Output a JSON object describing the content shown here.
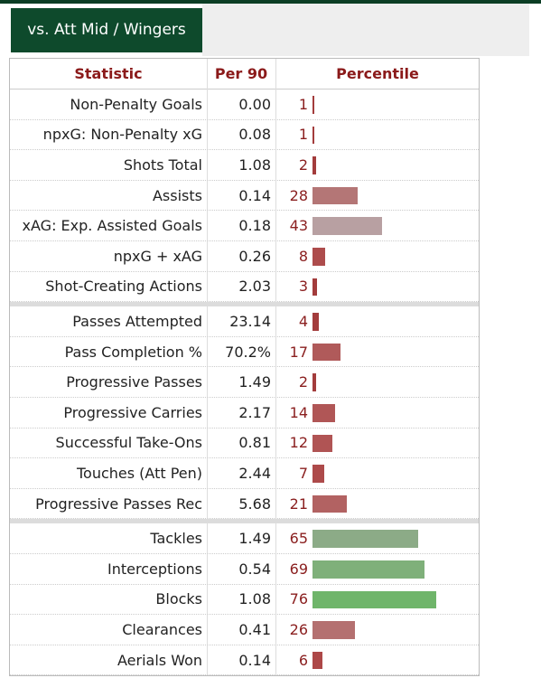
{
  "tab": "vs. Att Mid / Wingers",
  "table": {
    "headers": [
      "Statistic",
      "Per 90",
      "Percentile"
    ],
    "groups": [
      [
        {
          "statistic": "Non-Penalty Goals",
          "per90": "0.00",
          "percentile": 1,
          "color": "#a33c3c"
        },
        {
          "statistic": "npxG: Non-Penalty xG",
          "per90": "0.08",
          "percentile": 1,
          "color": "#a33c3c"
        },
        {
          "statistic": "Shots Total",
          "per90": "1.08",
          "percentile": 2,
          "color": "#a33c3c"
        },
        {
          "statistic": "Assists",
          "per90": "0.14",
          "percentile": 28,
          "color": "#b47676"
        },
        {
          "statistic": "xAG: Exp. Assisted Goals",
          "per90": "0.18",
          "percentile": 43,
          "color": "#b8a0a2"
        },
        {
          "statistic": "npxG + xAG",
          "per90": "0.26",
          "percentile": 8,
          "color": "#ad4c4c"
        },
        {
          "statistic": "Shot-Creating Actions",
          "per90": "2.03",
          "percentile": 3,
          "color": "#a33c3c"
        }
      ],
      [
        {
          "statistic": "Passes Attempted",
          "per90": "23.14",
          "percentile": 4,
          "color": "#a33c3c"
        },
        {
          "statistic": "Pass Completion %",
          "per90": "70.2%",
          "percentile": 17,
          "color": "#b05a5a"
        },
        {
          "statistic": "Progressive Passes",
          "per90": "1.49",
          "percentile": 2,
          "color": "#a33c3c"
        },
        {
          "statistic": "Progressive Carries",
          "per90": "2.17",
          "percentile": 14,
          "color": "#b05656"
        },
        {
          "statistic": "Successful Take-Ons",
          "per90": "0.81",
          "percentile": 12,
          "color": "#b05454"
        },
        {
          "statistic": "Touches (Att Pen)",
          "per90": "2.44",
          "percentile": 7,
          "color": "#ad4a4a"
        },
        {
          "statistic": "Progressive Passes Rec",
          "per90": "5.68",
          "percentile": 21,
          "color": "#b26262"
        }
      ],
      [
        {
          "statistic": "Tackles",
          "per90": "1.49",
          "percentile": 65,
          "color": "#8cab87"
        },
        {
          "statistic": "Interceptions",
          "per90": "0.54",
          "percentile": 69,
          "color": "#7fb07a"
        },
        {
          "statistic": "Blocks",
          "per90": "1.08",
          "percentile": 76,
          "color": "#6fb56a"
        },
        {
          "statistic": "Clearances",
          "per90": "0.41",
          "percentile": 26,
          "color": "#b47070"
        },
        {
          "statistic": "Aerials Won",
          "per90": "0.14",
          "percentile": 6,
          "color": "#ad4848"
        }
      ]
    ]
  }
}
